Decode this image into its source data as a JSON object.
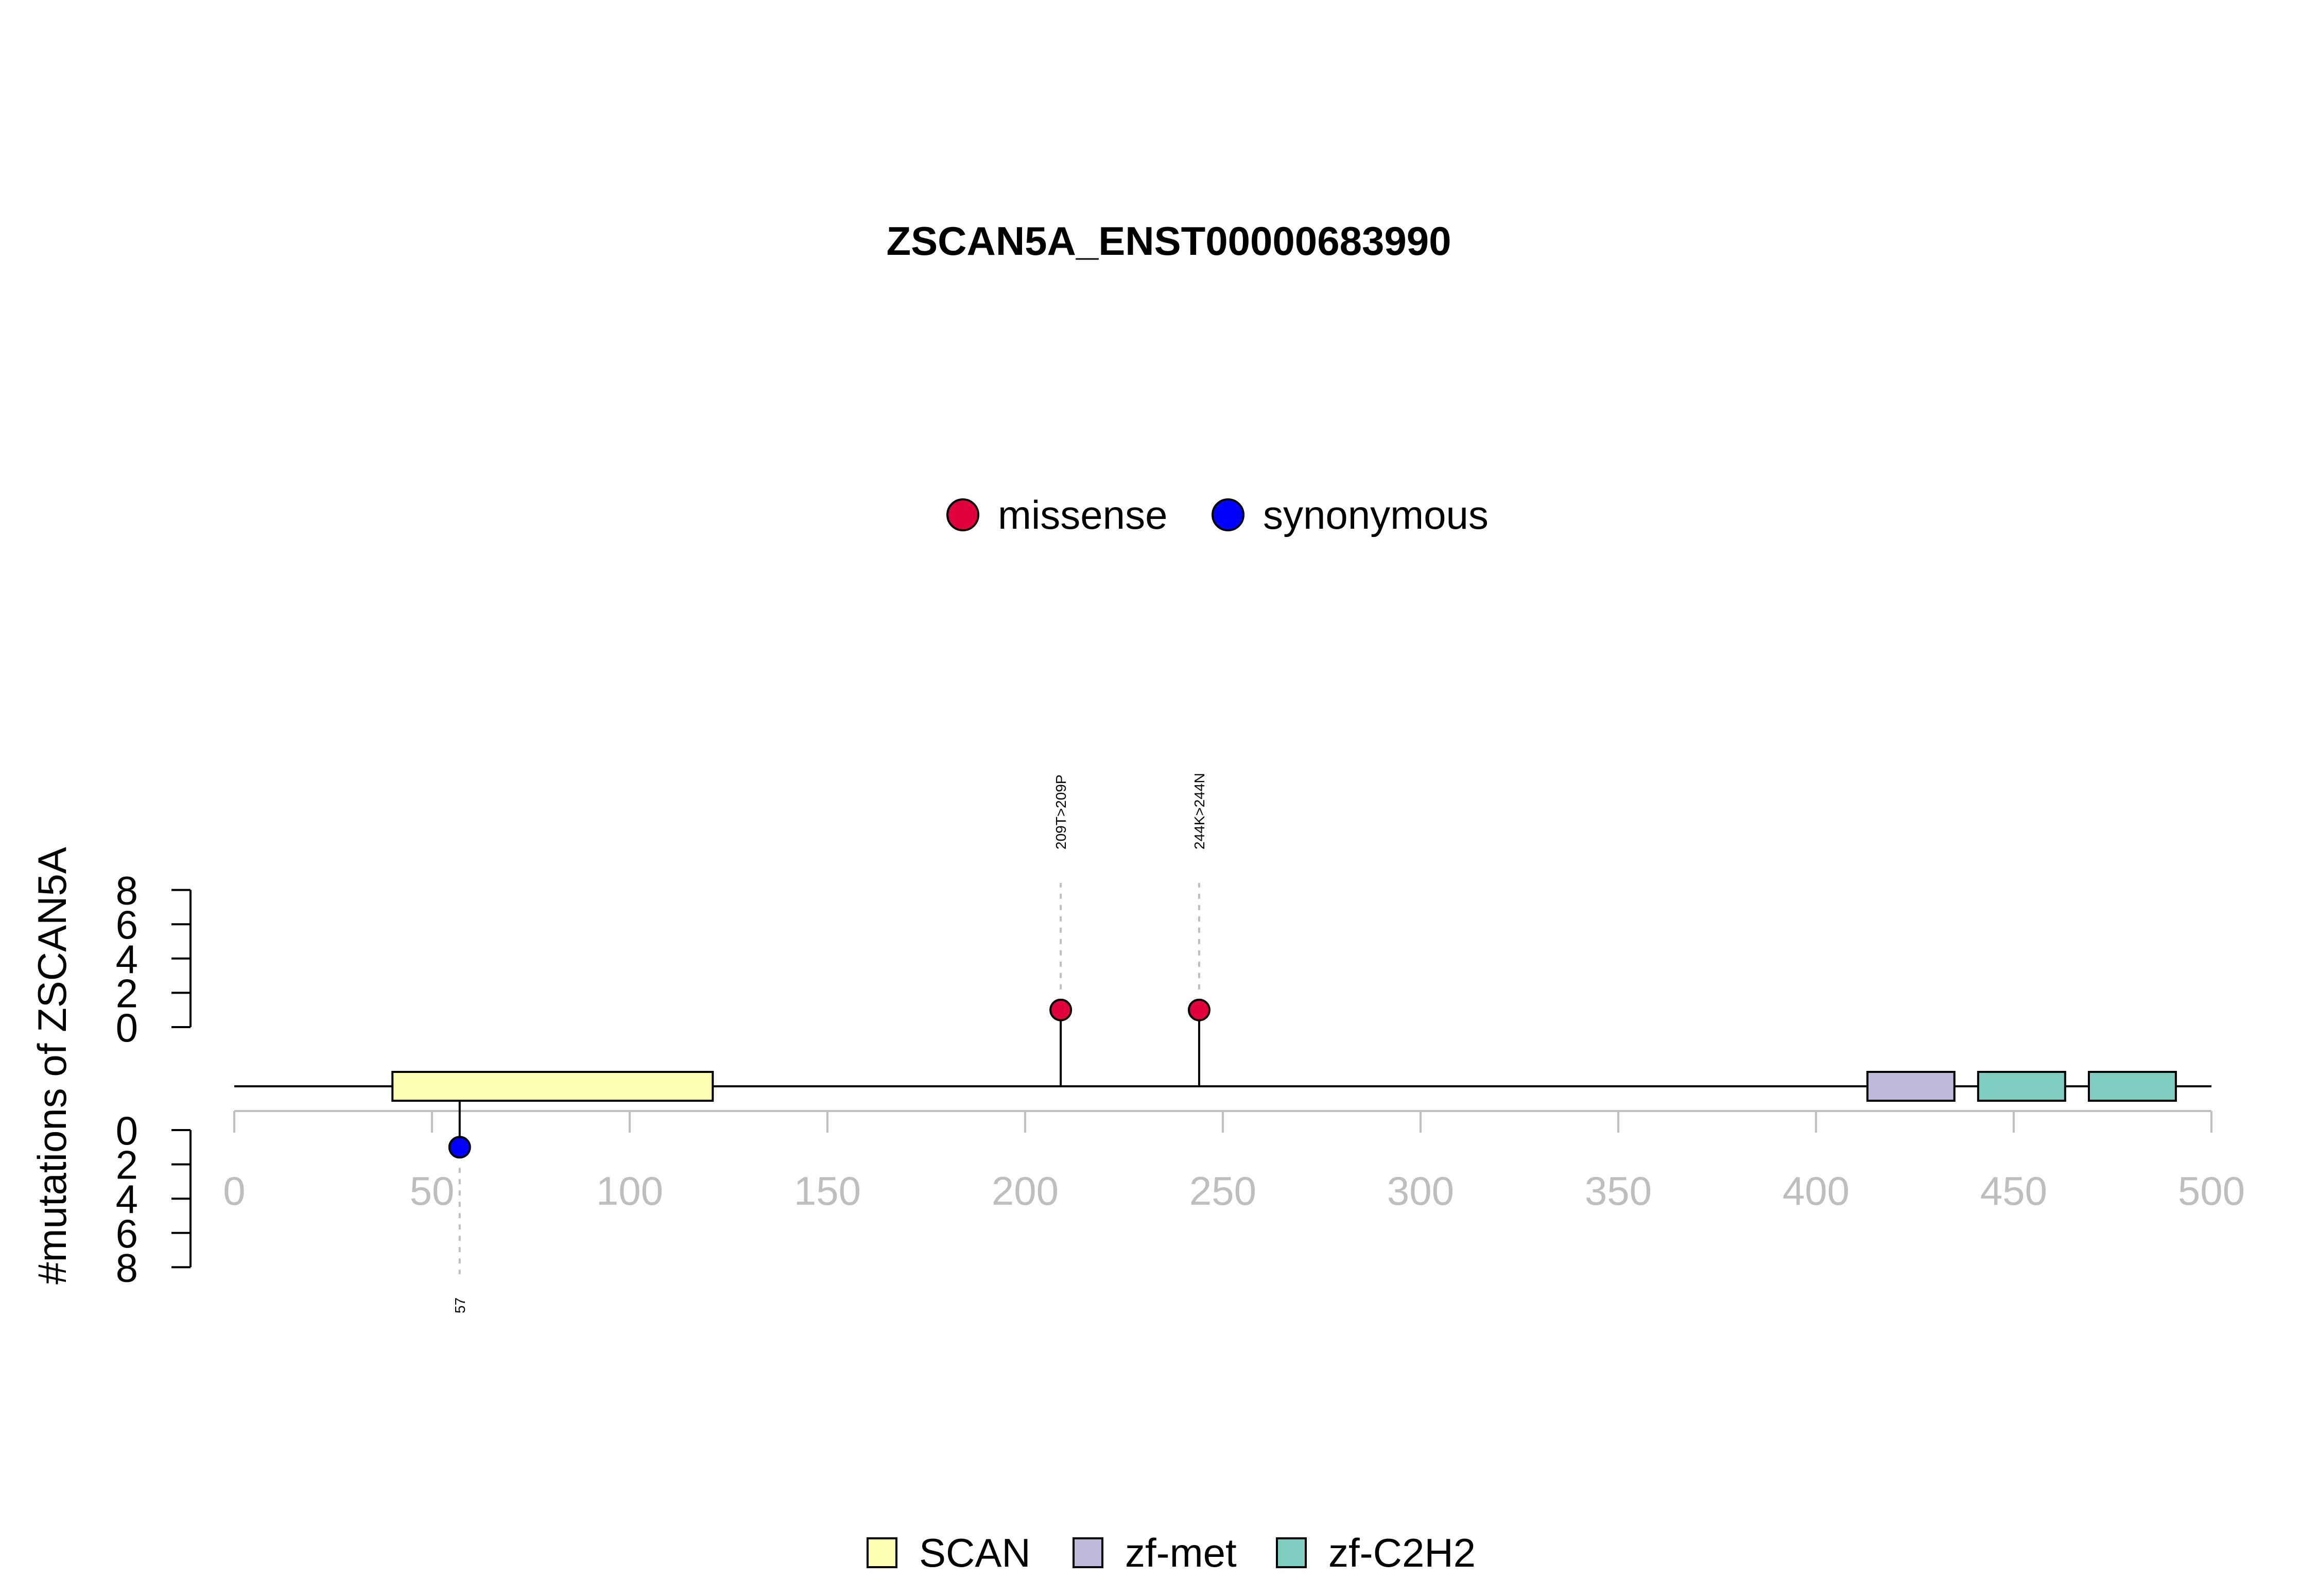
{
  "chart_data": {
    "type": "lollipop",
    "title": "ZSCAN5A_ENST00000683990",
    "ylabel": "#mutations of ZSCAN5A",
    "x_range": [
      0,
      500
    ],
    "x_ticks": [
      0,
      50,
      100,
      150,
      200,
      250,
      300,
      350,
      400,
      450,
      500
    ],
    "y_ticks": [
      0,
      2,
      4,
      6,
      8
    ],
    "protein_length": 500,
    "mutation_legend": [
      {
        "name": "missense",
        "color": "#e0003c"
      },
      {
        "name": "synonymous",
        "color": "#0000ff"
      }
    ],
    "domain_legend": [
      {
        "name": "SCAN",
        "color": "#ffffb3"
      },
      {
        "name": "zf-met",
        "color": "#bebada"
      },
      {
        "name": "zf-C2H2",
        "color": "#80cdc1"
      }
    ],
    "domains": [
      {
        "name": "SCAN",
        "start": 40,
        "end": 121,
        "color": "#ffffb3"
      },
      {
        "name": "zf-met",
        "start": 413,
        "end": 435,
        "color": "#bebada"
      },
      {
        "name": "zf-C2H2",
        "start": 441,
        "end": 463,
        "color": "#80cdc1"
      },
      {
        "name": "zf-C2H2",
        "start": 469,
        "end": 491,
        "color": "#80cdc1"
      }
    ],
    "mutations": [
      {
        "position": 209,
        "count": 1,
        "type": "missense",
        "label": "209T>209P",
        "color": "#e0003c"
      },
      {
        "position": 244,
        "count": 1,
        "type": "missense",
        "label": "244K>244N",
        "color": "#e0003c"
      },
      {
        "position": 57,
        "count": 1,
        "type": "synonymous",
        "label": "57",
        "color": "#0000ff"
      }
    ]
  }
}
